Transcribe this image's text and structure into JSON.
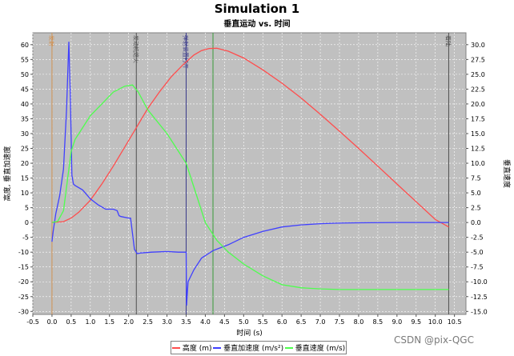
{
  "chart_data": {
    "type": "line",
    "title": "Simulation 1",
    "subtitle": "垂直运动 vs. 时间",
    "xlabel": "时间 (s)",
    "ylabel_left": "高度, 垂直加速度",
    "ylabel_right": "垂直速度",
    "xlim": [
      -0.5,
      10.8
    ],
    "ylim_left": [
      -31,
      64
    ],
    "ylim_right": [
      -15.5,
      32
    ],
    "x_ticks": [
      "-0.5",
      "0.0",
      "0.5",
      "1.0",
      "1.5",
      "2.0",
      "2.5",
      "3.0",
      "3.5",
      "4.0",
      "4.5",
      "5.0",
      "5.5",
      "6.0",
      "6.5",
      "7.0",
      "7.5",
      "8.0",
      "8.5",
      "9.0",
      "9.5",
      "10.0",
      "10.5"
    ],
    "y_left_ticks": [
      "60",
      "55",
      "50",
      "45",
      "40",
      "35",
      "30",
      "25",
      "20",
      "15",
      "10",
      "5",
      "0",
      "-5",
      "-10",
      "-15",
      "-20",
      "-25",
      "-30"
    ],
    "y_right_ticks": [
      "30.0",
      "27.5",
      "25.0",
      "22.5",
      "20.0",
      "17.5",
      "15.0",
      "12.5",
      "10.0",
      "7.5",
      "5.0",
      "2.5",
      "0.0",
      "-2.5",
      "-5.0",
      "-7.5",
      "-10.0",
      "-12.5",
      "-15.0"
    ],
    "grid": true,
    "legend_position": "bottom",
    "series": [
      {
        "name": "高度 (m)",
        "color": "#ff4d4d",
        "axis": "left",
        "x": [
          0.0,
          0.3,
          0.5,
          0.7,
          1.0,
          1.3,
          1.6,
          1.9,
          2.2,
          2.5,
          2.8,
          3.1,
          3.4,
          3.7,
          3.9,
          4.1,
          4.3,
          4.6,
          5.0,
          5.5,
          6.0,
          6.5,
          7.0,
          7.5,
          8.0,
          8.5,
          9.0,
          9.5,
          10.0,
          10.35
        ],
        "y": [
          0,
          0.3,
          1.5,
          3.5,
          7.5,
          13,
          19,
          25.5,
          32,
          38.5,
          44,
          49,
          53,
          56.5,
          58,
          58.7,
          58.8,
          57.8,
          55.5,
          51.5,
          47,
          42,
          36.5,
          30.8,
          25,
          19,
          13,
          7,
          1,
          -1.5
        ]
      },
      {
        "name": "垂直加速度 (m/s²)",
        "color": "#4040ff",
        "axis": "left",
        "x": [
          0.0,
          0.03,
          0.1,
          0.2,
          0.3,
          0.38,
          0.44,
          0.48,
          0.52,
          0.56,
          0.6,
          0.8,
          1.0,
          1.2,
          1.4,
          1.5,
          1.6,
          1.7,
          1.75,
          1.8,
          2.0,
          2.05,
          2.15,
          2.22,
          2.3,
          2.6,
          3.0,
          3.3,
          3.5,
          3.51,
          3.55,
          3.7,
          3.9,
          4.2,
          4.6,
          5.0,
          5.5,
          6.0,
          6.5,
          7.0,
          7.5,
          8.0,
          9.0,
          10.0,
          10.35
        ],
        "y": [
          -6.5,
          -3,
          3,
          9,
          18,
          38,
          61,
          42,
          16,
          13,
          12.5,
          11,
          8,
          6,
          4.5,
          4.5,
          4.5,
          4,
          2.3,
          2,
          1.5,
          1.5,
          -9,
          -10.5,
          -10.3,
          -10,
          -9.8,
          -10,
          -10,
          -28,
          -20,
          -16,
          -12,
          -9.5,
          -7.5,
          -5,
          -3,
          -1.5,
          -0.8,
          -0.4,
          -0.2,
          -0.1,
          0,
          0,
          0
        ]
      },
      {
        "name": "垂直速度 (m/s)",
        "color": "#4dff4d",
        "axis": "right",
        "x": [
          0.0,
          0.15,
          0.3,
          0.4,
          0.5,
          0.6,
          0.8,
          1.0,
          1.3,
          1.6,
          1.9,
          2.1,
          2.25,
          2.5,
          3.0,
          3.5,
          3.8,
          4.0,
          4.3,
          4.6,
          5.0,
          5.5,
          6.0,
          6.5,
          7.0,
          7.5,
          8.0,
          9.0,
          10.0,
          10.35
        ],
        "y": [
          0,
          0.2,
          2,
          7,
          12,
          14,
          16,
          18,
          20,
          22,
          23,
          23.2,
          22,
          19,
          15,
          10,
          4,
          0,
          -3,
          -5,
          -7,
          -9,
          -10.5,
          -11,
          -11.2,
          -11.3,
          -11.3,
          -11.3,
          -11.3,
          -11.3
        ]
      }
    ],
    "events": [
      {
        "x": 0.0,
        "label": "发射",
        "color": "#d09050"
      },
      {
        "x": 2.2,
        "label": "发动机熄火",
        "color": "#505050"
      },
      {
        "x": 3.5,
        "label": "弹射装置打开",
        "color": "#3a3a8a"
      },
      {
        "x": 4.2,
        "label": "",
        "color": "#3a9a3a"
      },
      {
        "x": 10.35,
        "label": "着陆",
        "color": "#505050"
      }
    ]
  },
  "watermark": "CSDN @pix-QGC"
}
